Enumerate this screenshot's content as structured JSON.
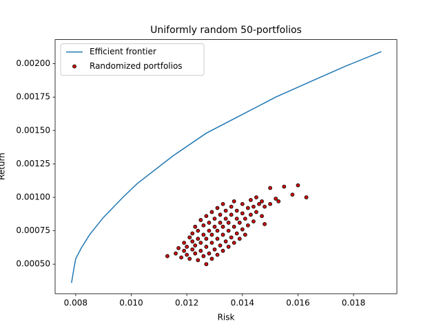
{
  "chart_data": {
    "type": "scatter",
    "title": "Uniformly random 50-portfolios",
    "x_label": "Risk",
    "y_label": "Return",
    "xlim": [
      0.00726,
      0.01956
    ],
    "ylim": [
      0.000279,
      0.00218
    ],
    "xticks": [
      0.008,
      {
        "value": 0.01,
        "label": "0.010"
      },
      0.012,
      0.014,
      0.016,
      0.018
    ],
    "yticks": [
      {
        "value": 0.0005,
        "label": "0.00050"
      },
      {
        "value": 0.00075,
        "label": "0.00075"
      },
      {
        "value": 0.001,
        "label": "0.00100"
      },
      {
        "value": 0.00125,
        "label": "0.00125"
      },
      {
        "value": 0.0015,
        "label": "0.00150"
      },
      {
        "value": 0.00175,
        "label": "0.00175"
      },
      {
        "value": 0.002,
        "label": "0.00200"
      }
    ],
    "legend": "upper left",
    "series": [
      {
        "name": "Efficient frontier",
        "kind": "line",
        "color": "#1f77b4",
        "x": [
          0.00785,
          0.00793,
          0.008,
          0.0082,
          0.0085,
          0.009,
          0.0097,
          0.0102,
          0.0115,
          0.0127,
          0.014,
          0.0152,
          0.0165,
          0.0177,
          0.019
        ],
        "values": [
          0.00036,
          0.00046,
          0.00054,
          0.00062,
          0.00072,
          0.00085,
          0.001,
          0.0011,
          0.00131,
          0.00148,
          0.00162,
          0.00175,
          0.00187,
          0.00198,
          0.00209
        ]
      },
      {
        "name": "Randomized portfolios",
        "kind": "scatter",
        "color": "#cc1111",
        "edge_color": "#000000",
        "x": [
          0.0116,
          0.0117,
          0.0118,
          0.0119,
          0.0119,
          0.012,
          0.012,
          0.0121,
          0.0121,
          0.0122,
          0.0122,
          0.0122,
          0.0123,
          0.0123,
          0.0123,
          0.0124,
          0.0124,
          0.0124,
          0.0125,
          0.0125,
          0.0125,
          0.0126,
          0.0126,
          0.0126,
          0.0127,
          0.0127,
          0.0127,
          0.0127,
          0.0128,
          0.0128,
          0.0128,
          0.0129,
          0.0129,
          0.0129,
          0.0129,
          0.013,
          0.013,
          0.013,
          0.0131,
          0.0131,
          0.0131,
          0.0131,
          0.0132,
          0.0132,
          0.0132,
          0.0133,
          0.0133,
          0.0133,
          0.0133,
          0.0134,
          0.0134,
          0.0134,
          0.0135,
          0.0135,
          0.0135,
          0.0136,
          0.0136,
          0.0136,
          0.0137,
          0.0137,
          0.0137,
          0.0138,
          0.0138,
          0.0138,
          0.0139,
          0.0139,
          0.014,
          0.014,
          0.014,
          0.0141,
          0.0141,
          0.0142,
          0.0142,
          0.0143,
          0.0143,
          0.0144,
          0.0144,
          0.0145,
          0.0145,
          0.0146,
          0.0147,
          0.0147,
          0.0148,
          0.0148,
          0.015,
          0.015,
          0.0152,
          0.0153,
          0.0155,
          0.0158,
          0.016,
          0.0163,
          0.0113
        ],
        "values": [
          0.00058,
          0.00062,
          0.00055,
          0.0006,
          0.00066,
          0.00057,
          0.00063,
          0.0007,
          0.00054,
          0.00061,
          0.00067,
          0.00073,
          0.00058,
          0.00064,
          0.00078,
          0.00053,
          0.00069,
          0.00075,
          0.0006,
          0.00066,
          0.00083,
          0.00056,
          0.00072,
          0.00079,
          0.0005,
          0.00063,
          0.00069,
          0.00086,
          0.00058,
          0.00075,
          0.00081,
          0.00054,
          0.00066,
          0.00072,
          0.00089,
          0.00061,
          0.00078,
          0.00084,
          0.00057,
          0.00069,
          0.00075,
          0.00092,
          0.00064,
          0.00081,
          0.00087,
          0.0006,
          0.00072,
          0.00078,
          0.00095,
          0.00067,
          0.00084,
          0.0009,
          0.00063,
          0.00075,
          0.00081,
          0.0007,
          0.00087,
          0.00093,
          0.00066,
          0.00078,
          0.00097,
          0.00073,
          0.00084,
          0.0009,
          0.00069,
          0.00081,
          0.00076,
          0.00088,
          0.00095,
          0.00072,
          0.00084,
          0.00079,
          0.00092,
          0.00087,
          0.00098,
          0.00082,
          0.00093,
          0.00089,
          0.001,
          0.00095,
          0.00086,
          0.00097,
          0.0008,
          0.00093,
          0.00107,
          0.00095,
          0.00099,
          0.00097,
          0.00108,
          0.00102,
          0.00109,
          0.001,
          0.00056
        ]
      }
    ]
  }
}
